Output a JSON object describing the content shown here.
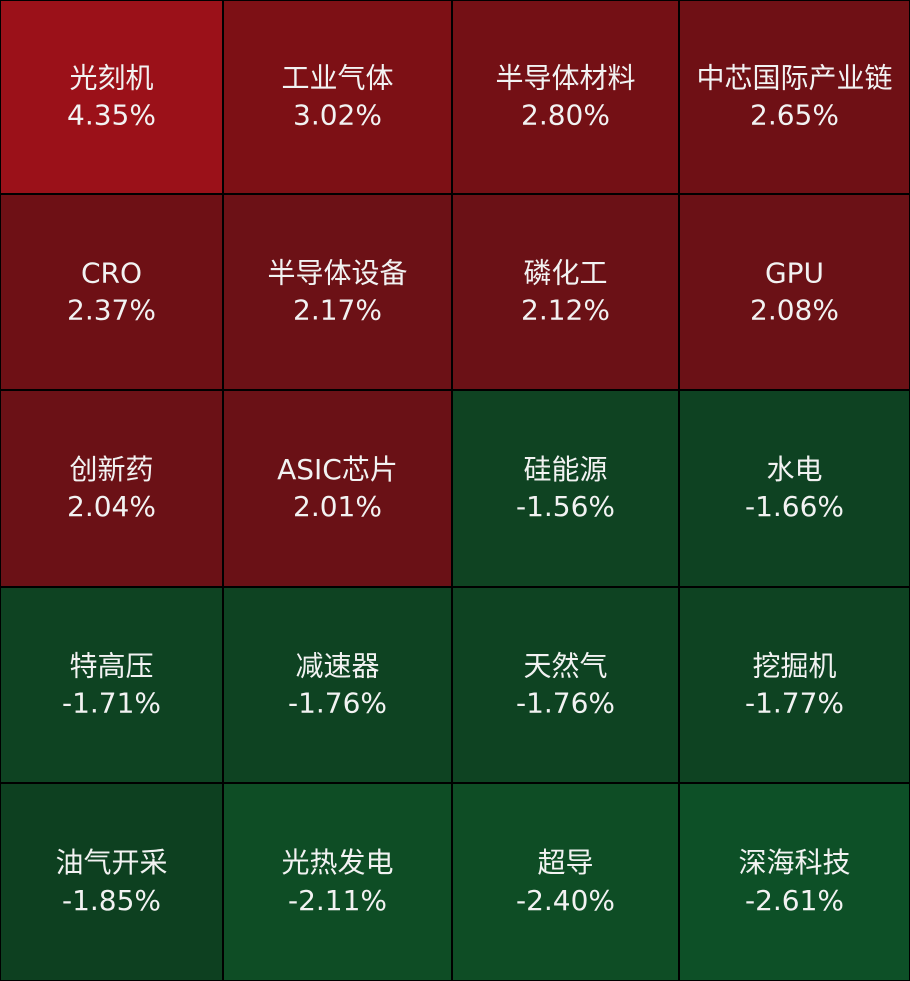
{
  "chart_data": {
    "type": "heatmap",
    "categories": [
      "光刻机",
      "工业气体",
      "半导体材料",
      "中芯国际产业链",
      "CRO",
      "半导体设备",
      "磷化工",
      "GPU",
      "创新药",
      "ASIC芯片",
      "硅能源",
      "水电",
      "特高压",
      "减速器",
      "天然气",
      "挖掘机",
      "油气开采",
      "光热发电",
      "超导",
      "深海科技"
    ],
    "values": [
      4.35,
      3.02,
      2.8,
      2.65,
      2.37,
      2.17,
      2.12,
      2.08,
      2.04,
      2.01,
      -1.56,
      -1.66,
      -1.71,
      -1.76,
      -1.76,
      -1.77,
      -1.85,
      -2.11,
      -2.4,
      -2.61
    ],
    "value_labels": [
      "4.35%",
      "3.02%",
      "2.80%",
      "2.65%",
      "2.37%",
      "2.17%",
      "2.12%",
      "2.08%",
      "2.04%",
      "2.01%",
      "-1.56%",
      "-1.66%",
      "-1.71%",
      "-1.76%",
      "-1.76%",
      "-1.77%",
      "-1.85%",
      "-2.11%",
      "-2.40%",
      "-2.61%"
    ],
    "colors": [
      "#9b1119",
      "#7d1015",
      "#741015",
      "#6f1015",
      "#6e1015",
      "#6c1116",
      "#6b1116",
      "#6b1116",
      "#6b1116",
      "#6a1116",
      "#0f4322",
      "#0e4222",
      "#0e4322",
      "#0e4322",
      "#0e4322",
      "#0e4322",
      "#0d4020",
      "#0e4d25",
      "#0e4d25",
      "#0d5027"
    ]
  }
}
